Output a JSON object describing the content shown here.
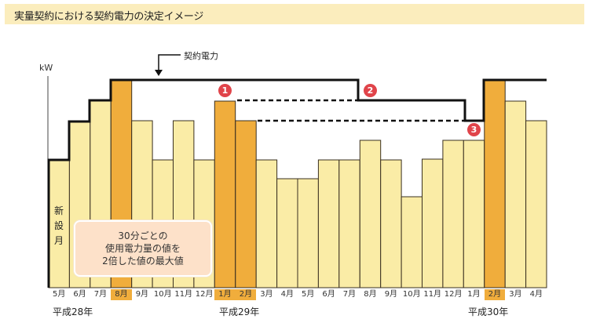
{
  "header": {
    "title": "実量契約における契約電力の決定イメージ"
  },
  "axis": {
    "y_unit": "kW"
  },
  "annotations": {
    "contract_power_label": "契約電力",
    "new_month_label": [
      "新",
      "設",
      "月"
    ],
    "note_lines": [
      "30分ごとの",
      "使用電力量の値を",
      "2倍した値の最大値"
    ],
    "badges": [
      "1",
      "2",
      "3"
    ]
  },
  "eras": [
    {
      "label": "平成28年"
    },
    {
      "label": "平成29年"
    },
    {
      "label": "平成30年"
    }
  ],
  "months": [
    "5月",
    "6月",
    "7月",
    "8月",
    "9月",
    "10月",
    "11月",
    "12月",
    "1月",
    "2月",
    "3月",
    "4月",
    "5月",
    "6月",
    "7月",
    "8月",
    "9月",
    "10月",
    "11月",
    "12月",
    "1月",
    "2月",
    "3月",
    "4月"
  ],
  "colors": {
    "bar": "#faeca6",
    "bar_peak": "#f0ad3c",
    "badge": "#e0444a",
    "header_bg": "#fbedbd",
    "note_bg": "#fde1c9"
  },
  "chart_data": {
    "type": "bar",
    "title": "実量契約における契約電力の決定イメージ",
    "xlabel": "",
    "ylabel": "kW",
    "categories": [
      "H28/5月",
      "H28/6月",
      "H28/7月",
      "H28/8月",
      "H28/9月",
      "H28/10月",
      "H28/11月",
      "H28/12月",
      "H29/1月",
      "H29/2月",
      "H29/3月",
      "H29/4月",
      "H29/5月",
      "H29/6月",
      "H29/7月",
      "H29/8月",
      "H29/9月",
      "H29/10月",
      "H29/11月",
      "H29/12月",
      "H30/1月",
      "H30/2月",
      "H30/3月",
      "H30/4月"
    ],
    "series": [
      {
        "name": "30分ごとの使用電力量の値を2倍した値の最大値",
        "values": [
          163,
          212,
          239,
          265,
          213,
          163,
          213,
          163,
          238,
          213,
          163,
          139,
          139,
          163,
          163,
          188,
          163,
          116,
          164,
          188,
          188,
          264,
          238,
          213
        ]
      },
      {
        "name": "契約電力",
        "values": [
          163,
          212,
          239,
          265,
          265,
          265,
          265,
          265,
          265,
          265,
          265,
          265,
          265,
          265,
          265,
          239,
          239,
          239,
          239,
          239,
          213,
          265,
          265,
          265
        ]
      }
    ],
    "highlighted": [
      "H28/8月",
      "H29/1月",
      "H29/2月",
      "H30/2月"
    ],
    "units": "relative px height (no numeric ticks shown)",
    "grid": false
  }
}
